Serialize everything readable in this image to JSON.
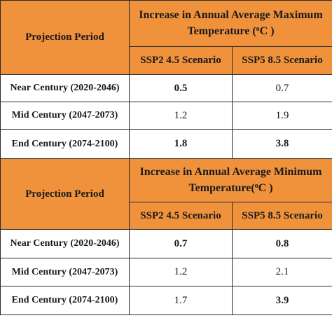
{
  "tables": [
    {
      "period_header": "Projection Period",
      "title_main": "Increase in Annual Average Maximum",
      "title_unit_prefix": "Temperature (",
      "title_unit_sup": "o",
      "title_unit_suffix": "C )",
      "scenarios": [
        "SSP2 4.5 Scenario",
        "SSP5 8.5 Scenario"
      ],
      "rows": [
        {
          "period": "Near Century  (2020-2046)",
          "ssp2": "0.5",
          "ssp5": "0.7"
        },
        {
          "period": "Mid Century  (2047-2073)",
          "ssp2": "1.2",
          "ssp5": "1.9"
        },
        {
          "period": "End Century  (2074-2100)",
          "ssp2": "1.8",
          "ssp5": "3.8"
        }
      ]
    },
    {
      "period_header": "Projection Period",
      "title_main": "Increase in Annual Average Minimum",
      "title_unit_prefix": "Temperature(",
      "title_unit_sup": "o",
      "title_unit_suffix": "C )",
      "scenarios": [
        "SSP2 4.5 Scenario",
        "SSP5 8.5 Scenario"
      ],
      "rows": [
        {
          "period": "Near Century  (2020-2046)",
          "ssp2": "0.7",
          "ssp5": "0.8"
        },
        {
          "period": "Mid Century  (2047-2073)",
          "ssp2": "1.2",
          "ssp5": "2.1"
        },
        {
          "period": "End Century  (2074-2100)",
          "ssp2": "1.7",
          "ssp5": "3.9"
        }
      ]
    }
  ],
  "colors": {
    "header_bg": "#f0923c",
    "border": "#2b2b2b",
    "text": "#1a1a1a"
  }
}
